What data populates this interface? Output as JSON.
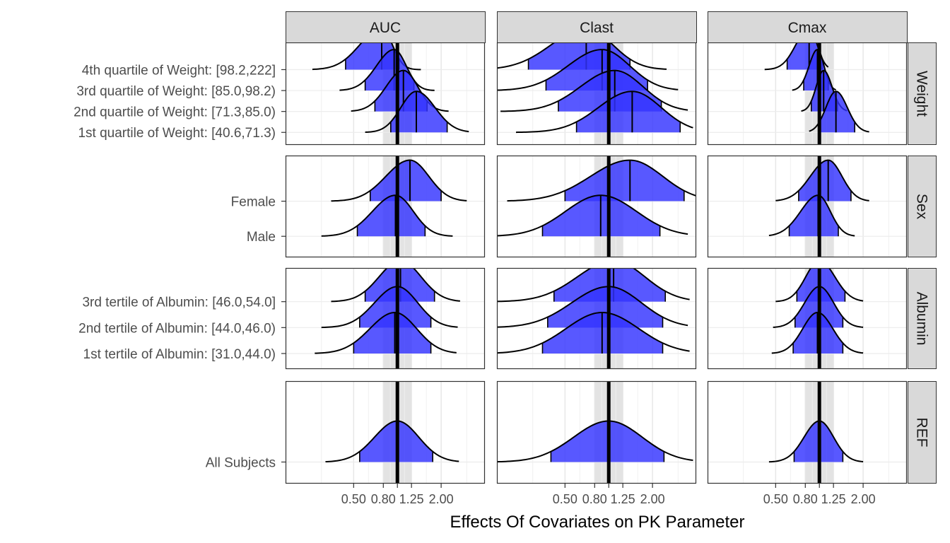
{
  "chart_data": {
    "type": "ridgeline-forest",
    "title": "",
    "xlabel": "Effects Of Covariates on PK Parameter",
    "ylabel": "",
    "x_scale": "log",
    "x_ticks": [
      0.5,
      0.8,
      1.0,
      1.25,
      2.0
    ],
    "x_tick_labels": [
      "0.50",
      "0.80",
      "",
      "1.25",
      "2.00"
    ],
    "x_range": [
      0.17,
      4.0
    ],
    "reference_line": 1.0,
    "reference_band": [
      0.8,
      1.25
    ],
    "band_color": "#e3e3e3",
    "fill_color": "#3333ff",
    "line_color": "#000000",
    "columns": [
      "AUC",
      "Clast",
      "Cmax"
    ],
    "rows": [
      {
        "name": "Weight",
        "levels": [
          "4th quartile of Weight: [98.2,222]",
          "3rd quartile of Weight: [85.0,98.2)",
          "2nd quartile of Weight: [71.3,85.0)",
          "1st quartile of Weight: [40.6,71.3)"
        ]
      },
      {
        "name": "Sex",
        "levels": [
          "Female",
          "Male"
        ]
      },
      {
        "name": "Albumin",
        "levels": [
          "3rd tertile of Albumin: [46.0,54.0]",
          "2nd tertile of Albumin: [44.0,46.0)",
          "1st tertile of Albumin: [31.0,44.0)"
        ]
      },
      {
        "name": "REF",
        "levels": [
          "All Subjects"
        ]
      }
    ],
    "series": [
      {
        "parameter": "AUC",
        "covariate": "Weight",
        "level": "4th quartile of Weight: [98.2,222]",
        "median": 0.78,
        "ci_low": 0.44,
        "ci_high": 1.03,
        "min": 0.26,
        "max": 1.45
      },
      {
        "parameter": "AUC",
        "covariate": "Weight",
        "level": "3rd quartile of Weight: [85.0,98.2)",
        "median": 0.95,
        "ci_low": 0.6,
        "ci_high": 1.3,
        "min": 0.4,
        "max": 1.8
      },
      {
        "parameter": "AUC",
        "covariate": "Weight",
        "level": "2nd quartile of Weight: [71.3,85.0)",
        "median": 1.1,
        "ci_low": 0.7,
        "ci_high": 1.6,
        "min": 0.48,
        "max": 2.25
      },
      {
        "parameter": "AUC",
        "covariate": "Weight",
        "level": "1st quartile of Weight: [40.6,71.3)",
        "median": 1.35,
        "ci_low": 0.9,
        "ci_high": 2.2,
        "min": 0.6,
        "max": 3.1
      },
      {
        "parameter": "AUC",
        "covariate": "Sex",
        "level": "Female",
        "median": 1.22,
        "ci_low": 0.65,
        "ci_high": 2.0,
        "min": 0.35,
        "max": 3.0
      },
      {
        "parameter": "AUC",
        "covariate": "Sex",
        "level": "Male",
        "median": 0.97,
        "ci_low": 0.53,
        "ci_high": 1.55,
        "min": 0.3,
        "max": 2.4
      },
      {
        "parameter": "AUC",
        "covariate": "Albumin",
        "level": "3rd tertile of Albumin: [46.0,54.0]",
        "median": 1.05,
        "ci_low": 0.6,
        "ci_high": 1.8,
        "min": 0.35,
        "max": 2.7
      },
      {
        "parameter": "AUC",
        "covariate": "Albumin",
        "level": "2nd tertile of Albumin: [44.0,46.0)",
        "median": 1.0,
        "ci_low": 0.55,
        "ci_high": 1.7,
        "min": 0.3,
        "max": 2.6
      },
      {
        "parameter": "AUC",
        "covariate": "Albumin",
        "level": "1st tertile of Albumin: [31.0,44.0)",
        "median": 0.96,
        "ci_low": 0.5,
        "ci_high": 1.7,
        "min": 0.27,
        "max": 2.55
      },
      {
        "parameter": "AUC",
        "covariate": "REF",
        "level": "All Subjects",
        "median": 1.0,
        "ci_low": 0.55,
        "ci_high": 1.75,
        "min": 0.32,
        "max": 2.65
      },
      {
        "parameter": "Clast",
        "covariate": "Weight",
        "level": "4th quartile of Weight: [98.2,222]",
        "median": 0.7,
        "ci_low": 0.28,
        "ci_high": 1.4,
        "min": 0.12,
        "max": 2.5
      },
      {
        "parameter": "Clast",
        "covariate": "Weight",
        "level": "3rd quartile of Weight: [85.0,98.2)",
        "median": 0.9,
        "ci_low": 0.37,
        "ci_high": 1.85,
        "min": 0.15,
        "max": 3.0
      },
      {
        "parameter": "Clast",
        "covariate": "Weight",
        "level": "2nd quartile of Weight: [71.3,85.0)",
        "median": 1.1,
        "ci_low": 0.45,
        "ci_high": 2.3,
        "min": 0.18,
        "max": 3.5
      },
      {
        "parameter": "Clast",
        "covariate": "Weight",
        "level": "1st quartile of Weight: [40.6,71.3)",
        "median": 1.45,
        "ci_low": 0.6,
        "ci_high": 3.1,
        "min": 0.23,
        "max": 3.8
      },
      {
        "parameter": "Clast",
        "covariate": "Sex",
        "level": "Female",
        "median": 1.4,
        "ci_low": 0.5,
        "ci_high": 3.3,
        "min": 0.2,
        "max": 4.0
      },
      {
        "parameter": "Clast",
        "covariate": "Sex",
        "level": "Male",
        "median": 0.88,
        "ci_low": 0.35,
        "ci_high": 2.25,
        "min": 0.15,
        "max": 3.5
      },
      {
        "parameter": "Clast",
        "covariate": "Albumin",
        "level": "3rd tertile of Albumin: [46.0,54.0]",
        "median": 1.08,
        "ci_low": 0.42,
        "ci_high": 2.45,
        "min": 0.17,
        "max": 3.6
      },
      {
        "parameter": "Clast",
        "covariate": "Albumin",
        "level": "2nd tertile of Albumin: [44.0,46.0)",
        "median": 1.0,
        "ci_low": 0.38,
        "ci_high": 2.35,
        "min": 0.15,
        "max": 3.5
      },
      {
        "parameter": "Clast",
        "covariate": "Albumin",
        "level": "1st tertile of Albumin: [31.0,44.0)",
        "median": 0.9,
        "ci_low": 0.35,
        "ci_high": 2.35,
        "min": 0.15,
        "max": 3.6
      },
      {
        "parameter": "Clast",
        "covariate": "REF",
        "level": "All Subjects",
        "median": 1.0,
        "ci_low": 0.4,
        "ci_high": 2.4,
        "min": 0.17,
        "max": 3.8
      },
      {
        "parameter": "Cmax",
        "covariate": "Weight",
        "level": "4th quartile of Weight: [98.2,222]",
        "median": 0.85,
        "ci_low": 0.6,
        "ci_high": 1.05,
        "min": 0.42,
        "max": 1.15
      },
      {
        "parameter": "Cmax",
        "covariate": "Weight",
        "level": "3rd quartile of Weight: [85.0,98.2)",
        "median": 0.97,
        "ci_low": 0.78,
        "ci_high": 1.15,
        "min": 0.65,
        "max": 1.3
      },
      {
        "parameter": "Cmax",
        "covariate": "Weight",
        "level": "2nd quartile of Weight: [71.3,85.0)",
        "median": 1.07,
        "ci_low": 0.88,
        "ci_high": 1.33,
        "min": 0.75,
        "max": 1.55
      },
      {
        "parameter": "Cmax",
        "covariate": "Weight",
        "level": "1st quartile of Weight: [40.6,71.3)",
        "median": 1.3,
        "ci_low": 1.0,
        "ci_high": 1.75,
        "min": 0.85,
        "max": 2.2
      },
      {
        "parameter": "Cmax",
        "covariate": "Sex",
        "level": "Female",
        "median": 1.15,
        "ci_low": 0.72,
        "ci_high": 1.65,
        "min": 0.5,
        "max": 2.2
      },
      {
        "parameter": "Cmax",
        "covariate": "Sex",
        "level": "Male",
        "median": 0.98,
        "ci_low": 0.62,
        "ci_high": 1.35,
        "min": 0.45,
        "max": 1.75
      },
      {
        "parameter": "Cmax",
        "covariate": "Albumin",
        "level": "3rd tertile of Albumin: [46.0,54.0]",
        "median": 1.0,
        "ci_low": 0.7,
        "ci_high": 1.5,
        "min": 0.5,
        "max": 2.0
      },
      {
        "parameter": "Cmax",
        "covariate": "Albumin",
        "level": "2nd tertile of Albumin: [44.0,46.0)",
        "median": 1.0,
        "ci_low": 0.68,
        "ci_high": 1.45,
        "min": 0.48,
        "max": 2.0
      },
      {
        "parameter": "Cmax",
        "covariate": "Albumin",
        "level": "1st tertile of Albumin: [31.0,44.0)",
        "median": 0.97,
        "ci_low": 0.66,
        "ci_high": 1.45,
        "min": 0.47,
        "max": 2.0
      },
      {
        "parameter": "Cmax",
        "covariate": "REF",
        "level": "All Subjects",
        "median": 1.0,
        "ci_low": 0.67,
        "ci_high": 1.45,
        "min": 0.45,
        "max": 2.0
      }
    ]
  }
}
